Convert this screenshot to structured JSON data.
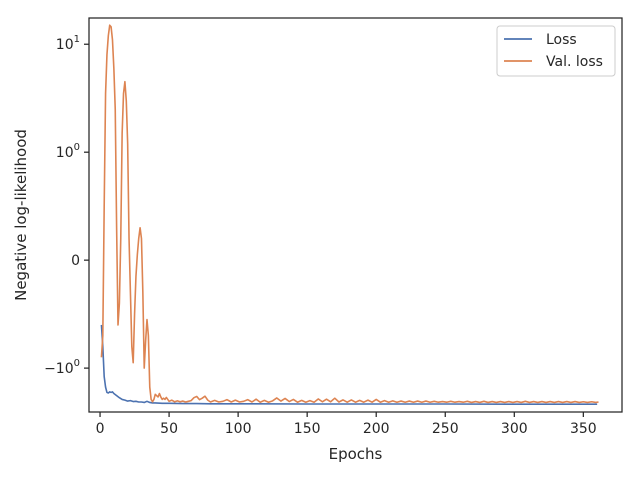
{
  "chart_data": {
    "type": "line",
    "xlabel": "Epochs",
    "ylabel": "Negative log-likelihood",
    "yscale": "symlog",
    "xlim": [
      -8,
      378
    ],
    "ylim": [
      -2.55,
      17.5
    ],
    "x_ticks": [
      0,
      50,
      100,
      150,
      200,
      250,
      300,
      350
    ],
    "y_ticks": [
      {
        "value": 10,
        "label_base": "10",
        "label_exp": "1",
        "label_sign": ""
      },
      {
        "value": 1,
        "label_base": "10",
        "label_exp": "0",
        "label_sign": ""
      },
      {
        "value": 0,
        "label_base": "0",
        "label_exp": "",
        "label_sign": ""
      },
      {
        "value": -1,
        "label_base": "10",
        "label_exp": "0",
        "label_sign": "−"
      }
    ],
    "grid": false,
    "legend": {
      "position": "top-right"
    },
    "series": [
      {
        "name": "Loss",
        "color": "#4c72b0",
        "points": [
          [
            1,
            -0.6
          ],
          [
            2,
            -0.8
          ],
          [
            3,
            -1.2
          ],
          [
            4,
            -1.5
          ],
          [
            5,
            -1.68
          ],
          [
            6,
            -1.7
          ],
          [
            7,
            -1.66
          ],
          [
            8,
            -1.68
          ],
          [
            9,
            -1.66
          ],
          [
            10,
            -1.72
          ],
          [
            12,
            -1.8
          ],
          [
            14,
            -1.88
          ],
          [
            16,
            -1.95
          ],
          [
            18,
            -1.98
          ],
          [
            20,
            -2.02
          ],
          [
            22,
            -2.0
          ],
          [
            24,
            -2.04
          ],
          [
            26,
            -2.03
          ],
          [
            28,
            -2.06
          ],
          [
            30,
            -2.06
          ],
          [
            32,
            -2.08
          ],
          [
            34,
            -2.03
          ],
          [
            36,
            -2.08
          ],
          [
            38,
            -2.1
          ],
          [
            40,
            -2.1
          ],
          [
            45,
            -2.12
          ],
          [
            50,
            -2.12
          ],
          [
            60,
            -2.13
          ],
          [
            70,
            -2.13
          ],
          [
            80,
            -2.14
          ],
          [
            100,
            -2.14
          ],
          [
            150,
            -2.15
          ],
          [
            200,
            -2.15
          ],
          [
            250,
            -2.15
          ],
          [
            300,
            -2.16
          ],
          [
            360,
            -2.16
          ]
        ]
      },
      {
        "name": "Val. loss",
        "color": "#dd8452",
        "points": [
          [
            1,
            -0.9
          ],
          [
            2,
            -0.7
          ],
          [
            3,
            0.5
          ],
          [
            4,
            3.5
          ],
          [
            5,
            8
          ],
          [
            6,
            12
          ],
          [
            7,
            15
          ],
          [
            8,
            14.5
          ],
          [
            9,
            11
          ],
          [
            10,
            6
          ],
          [
            11,
            2.5
          ],
          [
            12,
            0.3
          ],
          [
            13,
            -0.6
          ],
          [
            14,
            -0.4
          ],
          [
            15,
            0.2
          ],
          [
            16,
            1.5
          ],
          [
            17,
            3.5
          ],
          [
            18,
            4.5
          ],
          [
            19,
            3
          ],
          [
            20,
            1.2
          ],
          [
            21,
            0.2
          ],
          [
            22,
            -0.3
          ],
          [
            23,
            -0.8
          ],
          [
            24,
            -0.95
          ],
          [
            25,
            -0.5
          ],
          [
            26,
            -0.15
          ],
          [
            27,
            0.05
          ],
          [
            28,
            0.2
          ],
          [
            29,
            0.3
          ],
          [
            30,
            0.2
          ],
          [
            31,
            -0.3
          ],
          [
            32,
            -1.0
          ],
          [
            33,
            -0.75
          ],
          [
            34,
            -0.55
          ],
          [
            35,
            -0.7
          ],
          [
            36,
            -1.5
          ],
          [
            37,
            -1.95
          ],
          [
            38,
            -2.05
          ],
          [
            39,
            -1.95
          ],
          [
            40,
            -1.75
          ],
          [
            41,
            -1.8
          ],
          [
            42,
            -1.85
          ],
          [
            43,
            -1.72
          ],
          [
            44,
            -1.85
          ],
          [
            45,
            -1.95
          ],
          [
            46,
            -1.9
          ],
          [
            47,
            -1.95
          ],
          [
            48,
            -1.87
          ],
          [
            50,
            -2.03
          ],
          [
            52,
            -1.98
          ],
          [
            54,
            -2.05
          ],
          [
            56,
            -2.01
          ],
          [
            58,
            -2.05
          ],
          [
            60,
            -2.02
          ],
          [
            62,
            -2.06
          ],
          [
            64,
            -2.03
          ],
          [
            66,
            -2.0
          ],
          [
            68,
            -1.88
          ],
          [
            70,
            -1.83
          ],
          [
            72,
            -1.96
          ],
          [
            74,
            -1.9
          ],
          [
            76,
            -1.82
          ],
          [
            78,
            -1.98
          ],
          [
            80,
            -2.06
          ],
          [
            83,
            -1.99
          ],
          [
            86,
            -2.06
          ],
          [
            89,
            -2.03
          ],
          [
            92,
            -1.96
          ],
          [
            95,
            -2.06
          ],
          [
            98,
            -1.98
          ],
          [
            101,
            -2.06
          ],
          [
            104,
            -2.03
          ],
          [
            107,
            -1.96
          ],
          [
            110,
            -2.06
          ],
          [
            113,
            -1.94
          ],
          [
            116,
            -2.07
          ],
          [
            119,
            -1.99
          ],
          [
            122,
            -2.07
          ],
          [
            125,
            -2.01
          ],
          [
            128,
            -1.89
          ],
          [
            131,
            -2.02
          ],
          [
            134,
            -1.91
          ],
          [
            137,
            -2.04
          ],
          [
            140,
            -1.95
          ],
          [
            143,
            -2.07
          ],
          [
            146,
            -1.99
          ],
          [
            149,
            -2.07
          ],
          [
            152,
            -2.0
          ],
          [
            155,
            -2.07
          ],
          [
            158,
            -1.93
          ],
          [
            161,
            -2.05
          ],
          [
            164,
            -1.94
          ],
          [
            167,
            -2.05
          ],
          [
            170,
            -1.9
          ],
          [
            173,
            -2.06
          ],
          [
            176,
            -1.97
          ],
          [
            179,
            -2.07
          ],
          [
            182,
            -1.97
          ],
          [
            185,
            -2.07
          ],
          [
            188,
            -1.99
          ],
          [
            191,
            -2.07
          ],
          [
            194,
            -1.98
          ],
          [
            197,
            -2.07
          ],
          [
            200,
            -1.95
          ],
          [
            203,
            -2.07
          ],
          [
            206,
            -2.0
          ],
          [
            209,
            -2.07
          ],
          [
            212,
            -2.01
          ],
          [
            215,
            -2.07
          ],
          [
            218,
            -2.02
          ],
          [
            221,
            -2.07
          ],
          [
            224,
            -2.02
          ],
          [
            227,
            -2.07
          ],
          [
            230,
            -2.02
          ],
          [
            233,
            -2.07
          ],
          [
            236,
            -2.02
          ],
          [
            239,
            -2.07
          ],
          [
            242,
            -2.03
          ],
          [
            245,
            -2.07
          ],
          [
            248,
            -2.04
          ],
          [
            251,
            -2.07
          ],
          [
            254,
            -2.03
          ],
          [
            257,
            -2.07
          ],
          [
            260,
            -2.04
          ],
          [
            263,
            -2.07
          ],
          [
            266,
            -2.03
          ],
          [
            269,
            -2.08
          ],
          [
            272,
            -2.04
          ],
          [
            275,
            -2.08
          ],
          [
            278,
            -2.03
          ],
          [
            281,
            -2.08
          ],
          [
            284,
            -2.04
          ],
          [
            287,
            -2.08
          ],
          [
            290,
            -2.04
          ],
          [
            293,
            -2.08
          ],
          [
            296,
            -2.04
          ],
          [
            299,
            -2.08
          ],
          [
            302,
            -2.04
          ],
          [
            305,
            -2.08
          ],
          [
            308,
            -2.03
          ],
          [
            311,
            -2.08
          ],
          [
            314,
            -2.04
          ],
          [
            317,
            -2.08
          ],
          [
            320,
            -2.04
          ],
          [
            323,
            -2.08
          ],
          [
            326,
            -2.04
          ],
          [
            329,
            -2.08
          ],
          [
            332,
            -2.04
          ],
          [
            335,
            -2.08
          ],
          [
            338,
            -2.04
          ],
          [
            341,
            -2.08
          ],
          [
            344,
            -2.04
          ],
          [
            347,
            -2.08
          ],
          [
            350,
            -2.05
          ],
          [
            353,
            -2.08
          ],
          [
            356,
            -2.05
          ],
          [
            359,
            -2.08
          ],
          [
            361,
            -2.06
          ]
        ]
      }
    ]
  }
}
